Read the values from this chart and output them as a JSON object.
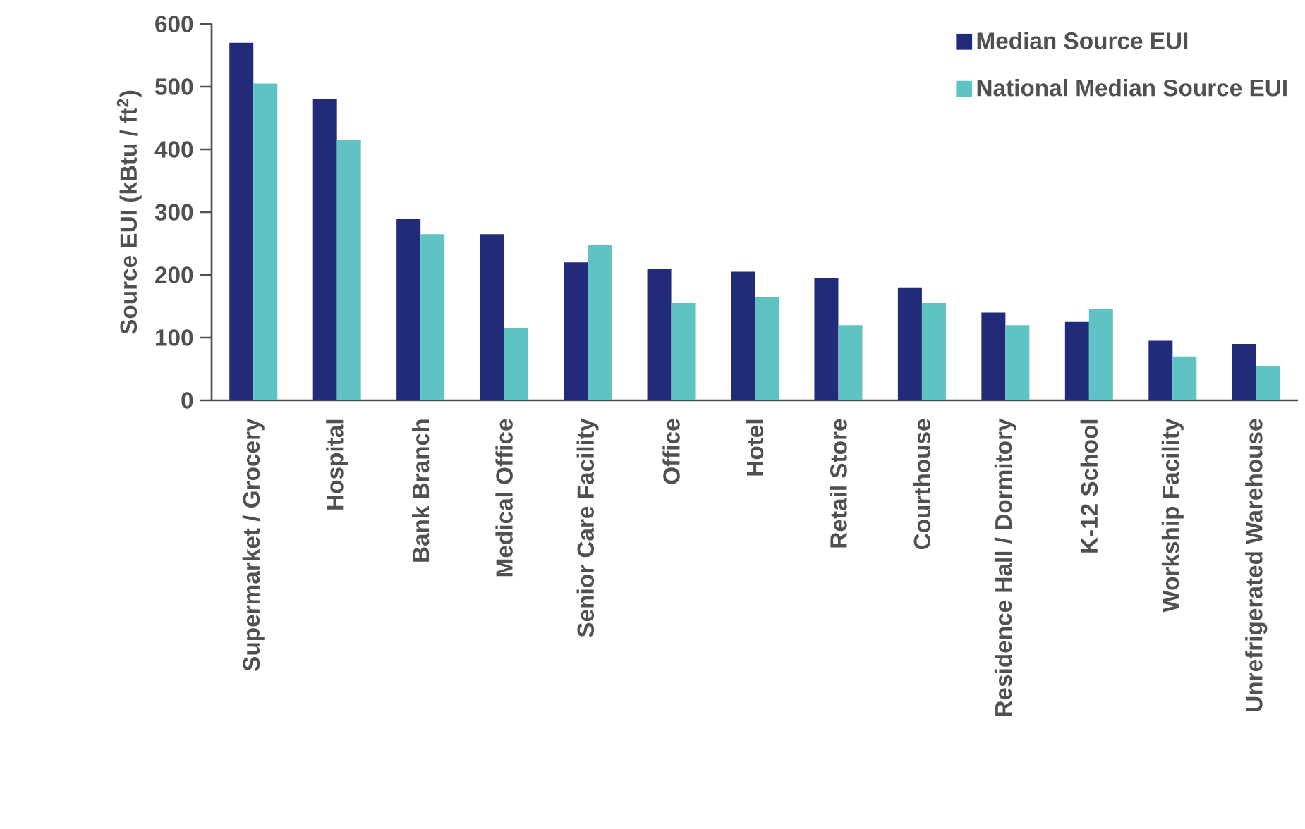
{
  "chart_data": {
    "type": "bar",
    "ylabel": "Source EUI (kBtu / ft$^{2}$)",
    "categories": [
      "Supermarket / Grocery",
      "Hospital",
      "Bank Branch",
      "Medical Office",
      "Senior Care Facility",
      "Office",
      "Hotel",
      "Retail Store",
      "Courthouse",
      "Residence Hall / Dormitory",
      "K-12 School",
      "Workship Facility",
      "Unrefrigerated Warehouse"
    ],
    "series": [
      {
        "name": "Median Source EUI",
        "color": "#222a7a",
        "values": [
          570,
          480,
          290,
          265,
          220,
          210,
          205,
          195,
          180,
          140,
          125,
          95,
          90
        ]
      },
      {
        "name": "National Median Source EUI",
        "color": "#5fc3c3",
        "values": [
          505,
          415,
          265,
          115,
          248,
          155,
          165,
          120,
          155,
          120,
          145,
          70,
          55
        ]
      }
    ],
    "ylim": [
      0,
      600
    ],
    "yticks": [
      0,
      100,
      200,
      300,
      400,
      500,
      600
    ],
    "grid": false,
    "legend": "top right"
  }
}
